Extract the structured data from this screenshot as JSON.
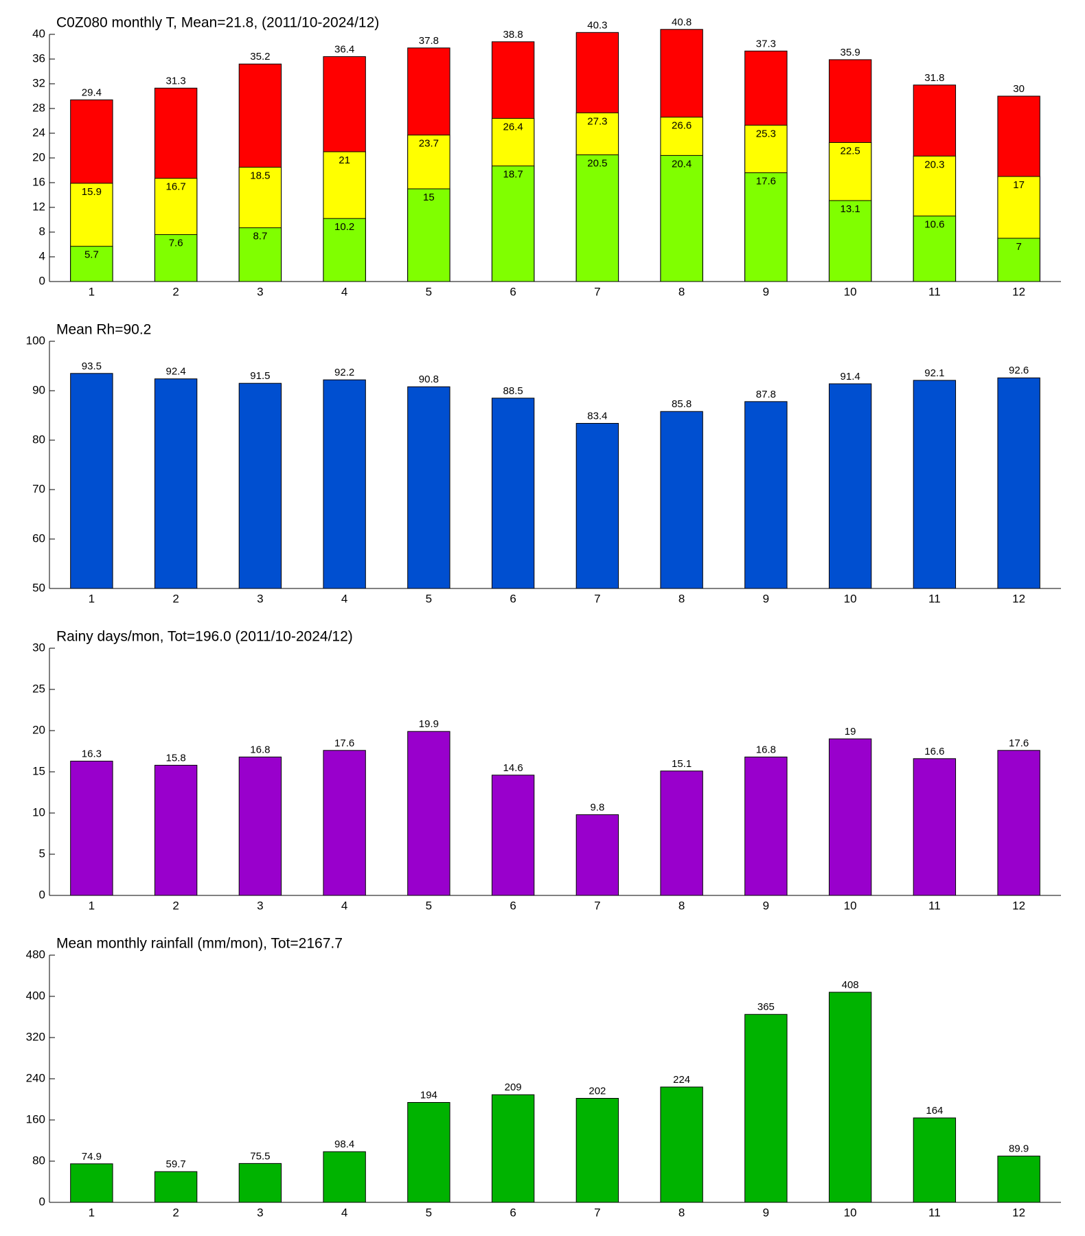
{
  "chart_data": [
    {
      "type": "bar",
      "barmode": "overlay",
      "title": "C0Z080 monthly T, Mean=21.8, (2011/10-2024/12)",
      "categories": [
        "1",
        "2",
        "3",
        "4",
        "5",
        "6",
        "7",
        "8",
        "9",
        "10",
        "11",
        "12"
      ],
      "series": [
        {
          "color": "#ff0000",
          "values": [
            29.4,
            31.3,
            35.2,
            36.4,
            37.8,
            38.8,
            40.3,
            40.8,
            37.3,
            35.9,
            31.8,
            30
          ]
        },
        {
          "color": "#ffff00",
          "values": [
            15.9,
            16.7,
            18.5,
            21,
            23.7,
            26.4,
            27.3,
            26.6,
            25.3,
            22.5,
            20.3,
            17
          ]
        },
        {
          "color": "#80ff00",
          "values": [
            5.7,
            7.6,
            8.7,
            10.2,
            15,
            18.7,
            20.5,
            20.4,
            17.6,
            13.1,
            10.6,
            7
          ]
        }
      ],
      "ylim": [
        0,
        40
      ],
      "yticks": [
        0,
        4,
        8,
        12,
        16,
        20,
        24,
        28,
        32,
        36,
        40
      ]
    },
    {
      "type": "bar",
      "title": "Mean Rh=90.2",
      "categories": [
        "1",
        "2",
        "3",
        "4",
        "5",
        "6",
        "7",
        "8",
        "9",
        "10",
        "11",
        "12"
      ],
      "values": [
        93.5,
        92.4,
        91.5,
        92.2,
        90.8,
        88.5,
        83.4,
        85.8,
        87.8,
        91.4,
        92.1,
        92.6
      ],
      "color": "#004fd0",
      "ylim": [
        50,
        100
      ],
      "yticks": [
        50,
        60,
        70,
        80,
        90,
        100
      ]
    },
    {
      "type": "bar",
      "title": "Rainy days/mon, Tot=196.0 (2011/10-2024/12)",
      "categories": [
        "1",
        "2",
        "3",
        "4",
        "5",
        "6",
        "7",
        "8",
        "9",
        "10",
        "11",
        "12"
      ],
      "values": [
        16.3,
        15.8,
        16.8,
        17.6,
        19.9,
        14.6,
        9.8,
        15.1,
        16.8,
        19,
        16.6,
        17.6
      ],
      "color": "#9900cc",
      "ylim": [
        0,
        30
      ],
      "yticks": [
        0,
        5,
        10,
        15,
        20,
        25,
        30
      ]
    },
    {
      "type": "bar",
      "title": "Mean monthly rainfall (mm/mon), Tot=2167.7",
      "categories": [
        "1",
        "2",
        "3",
        "4",
        "5",
        "6",
        "7",
        "8",
        "9",
        "10",
        "11",
        "12"
      ],
      "values": [
        74.9,
        59.7,
        75.5,
        98.4,
        194,
        209,
        202,
        224,
        365,
        408,
        164,
        89.9
      ],
      "color": "#00b300",
      "ylim": [
        0,
        480
      ],
      "yticks": [
        0,
        80,
        160,
        240,
        320,
        400,
        480
      ]
    }
  ]
}
